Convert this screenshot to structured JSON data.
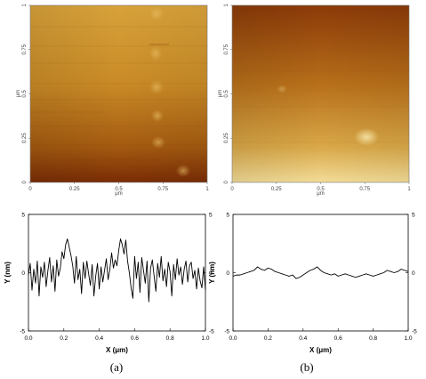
{
  "afm_images": [
    {
      "id": "a",
      "x_ticks": [
        "0",
        "0.25",
        "0.5",
        "0.75",
        "1"
      ],
      "y_ticks": [
        "0",
        "0.25",
        "0.5",
        "0.75",
        "1"
      ],
      "x_unit": "μm",
      "y_unit": "μm",
      "colors": {
        "dark": "#7a2c05",
        "mid": "#b56a14",
        "light": "#d9a33c"
      }
    },
    {
      "id": "b",
      "x_ticks": [
        "0",
        "0.25",
        "0.5",
        "0.75",
        "1"
      ],
      "y_ticks": [
        "0",
        "0.25",
        "0.5",
        "0.75",
        "1"
      ],
      "x_unit": "μm",
      "y_unit": "μm",
      "colors": {
        "dark": "#8b3a08",
        "mid": "#c8851e",
        "light": "#f0d588"
      }
    }
  ],
  "captions": [
    "(a)",
    "(b)"
  ],
  "chart_data": [
    {
      "type": "line",
      "xlabel": "X (μm)",
      "ylabel": "Y (nm)",
      "xlim": [
        0.0,
        1.0
      ],
      "ylim": [
        -5,
        5
      ],
      "x_ticks": [
        "0.0",
        "0.2",
        "0.4",
        "0.6",
        "0.8",
        "1.0"
      ],
      "y_ticks": [
        "5",
        "0",
        "-5"
      ],
      "y2_ticks": [
        "5",
        "0",
        "-5"
      ],
      "x": [
        0.0,
        0.01,
        0.02,
        0.03,
        0.04,
        0.05,
        0.06,
        0.07,
        0.08,
        0.09,
        0.1,
        0.11,
        0.12,
        0.13,
        0.14,
        0.15,
        0.16,
        0.17,
        0.18,
        0.19,
        0.2,
        0.21,
        0.22,
        0.23,
        0.24,
        0.25,
        0.26,
        0.27,
        0.28,
        0.29,
        0.3,
        0.31,
        0.32,
        0.33,
        0.34,
        0.35,
        0.36,
        0.37,
        0.38,
        0.39,
        0.4,
        0.41,
        0.42,
        0.43,
        0.44,
        0.45,
        0.46,
        0.47,
        0.48,
        0.49,
        0.5,
        0.51,
        0.52,
        0.53,
        0.54,
        0.55,
        0.56,
        0.57,
        0.58,
        0.59,
        0.6,
        0.61,
        0.62,
        0.63,
        0.64,
        0.65,
        0.66,
        0.67,
        0.68,
        0.69,
        0.7,
        0.71,
        0.72,
        0.73,
        0.74,
        0.75,
        0.76,
        0.77,
        0.78,
        0.79,
        0.8,
        0.81,
        0.82,
        0.83,
        0.84,
        0.85,
        0.86,
        0.87,
        0.88,
        0.89,
        0.9,
        0.91,
        0.92,
        0.93,
        0.94,
        0.95,
        0.96,
        0.97,
        0.98,
        0.99,
        1.0
      ],
      "y": [
        -0.2,
        0.8,
        -1.5,
        0.3,
        -0.9,
        1.0,
        -2.0,
        0.5,
        -0.4,
        0.9,
        -1.2,
        0.2,
        1.3,
        -0.8,
        0.6,
        -1.6,
        1.1,
        -0.3,
        0.4,
        1.8,
        1.2,
        2.4,
        2.9,
        2.2,
        1.5,
        0.6,
        -0.9,
        1.4,
        -0.6,
        0.3,
        -1.8,
        0.9,
        -0.5,
        1.0,
        -0.1,
        -1.1,
        0.7,
        -2.0,
        -0.3,
        0.8,
        -1.4,
        0.5,
        -0.8,
        0.2,
        1.2,
        -0.6,
        0.3,
        1.7,
        0.4,
        1.1,
        0.6,
        1.9,
        2.9,
        2.4,
        1.6,
        2.8,
        1.0,
        0.0,
        -1.3,
        -2.2,
        1.4,
        -0.5,
        0.9,
        -1.7,
        1.3,
        0.2,
        -0.9,
        1.0,
        -2.5,
        0.4,
        1.1,
        -0.3,
        -1.6,
        0.8,
        -0.4,
        1.4,
        -0.7,
        0.3,
        -1.2,
        0.9,
        0.1,
        -2.0,
        0.7,
        -0.6,
        1.2,
        -0.2,
        0.5,
        -1.0,
        0.3,
        1.0,
        -0.8,
        0.6,
        0.9,
        -0.5,
        0.2,
        -1.4,
        0.4,
        -0.7,
        -1.3,
        0.5,
        -1.5
      ]
    },
    {
      "type": "line",
      "xlabel": "X (μm)",
      "ylabel": "Y (nm)",
      "xlim": [
        0.0,
        1.0
      ],
      "ylim": [
        -5,
        5
      ],
      "x_ticks": [
        "0.0",
        "0.2",
        "0.4",
        "0.6",
        "0.8",
        "1.0"
      ],
      "y_ticks": [
        "5",
        "0",
        "-5"
      ],
      "y2_ticks": [
        "5",
        "0",
        "-5"
      ],
      "x": [
        0.0,
        0.02,
        0.04,
        0.06,
        0.08,
        0.1,
        0.12,
        0.14,
        0.16,
        0.18,
        0.2,
        0.22,
        0.24,
        0.26,
        0.28,
        0.3,
        0.32,
        0.34,
        0.36,
        0.38,
        0.4,
        0.42,
        0.44,
        0.46,
        0.48,
        0.5,
        0.52,
        0.54,
        0.56,
        0.58,
        0.6,
        0.62,
        0.64,
        0.66,
        0.68,
        0.7,
        0.72,
        0.74,
        0.76,
        0.78,
        0.8,
        0.82,
        0.84,
        0.86,
        0.88,
        0.9,
        0.92,
        0.94,
        0.96,
        0.98,
        1.0
      ],
      "y": [
        -0.3,
        -0.2,
        -0.2,
        -0.1,
        0.0,
        0.1,
        0.2,
        0.5,
        0.3,
        0.2,
        0.4,
        0.3,
        0.1,
        0.0,
        -0.1,
        -0.2,
        -0.3,
        -0.2,
        -0.5,
        -0.4,
        -0.2,
        0.0,
        0.2,
        0.3,
        0.5,
        0.2,
        0.0,
        -0.1,
        -0.2,
        -0.1,
        -0.3,
        -0.2,
        -0.1,
        -0.2,
        -0.3,
        -0.4,
        -0.3,
        -0.2,
        -0.1,
        -0.2,
        -0.3,
        -0.2,
        -0.1,
        0.0,
        0.2,
        0.1,
        0.0,
        0.1,
        0.3,
        0.2,
        0.1
      ]
    }
  ]
}
